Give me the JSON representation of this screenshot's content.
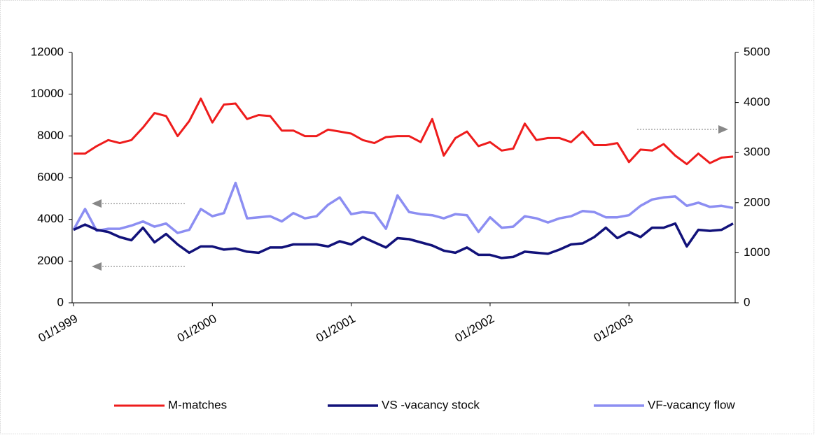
{
  "chart_data": {
    "type": "line",
    "categories": [
      "01/1999",
      null,
      null,
      null,
      null,
      null,
      null,
      null,
      null,
      null,
      null,
      null,
      "01/2000",
      null,
      null,
      null,
      null,
      null,
      null,
      null,
      null,
      null,
      null,
      null,
      "01/2001",
      null,
      null,
      null,
      null,
      null,
      null,
      null,
      null,
      null,
      null,
      null,
      "01/2002",
      null,
      null,
      null,
      null,
      null,
      null,
      null,
      null,
      null,
      null,
      null,
      "01/2003",
      null,
      null,
      null,
      null,
      null,
      null,
      null,
      null,
      null
    ],
    "series": [
      {
        "name": "M-matches",
        "color": "#ee1c1c",
        "axis": "y2",
        "values": [
          2980,
          2980,
          3130,
          3250,
          3190,
          3250,
          3500,
          3790,
          3730,
          3330,
          3630,
          4080,
          3600,
          3960,
          3980,
          3670,
          3750,
          3730,
          3440,
          3440,
          3330,
          3330,
          3460,
          3420,
          3380,
          3250,
          3190,
          3310,
          3330,
          3330,
          3210,
          3670,
          2940,
          3290,
          3420,
          3130,
          3210,
          3040,
          3080,
          3580,
          3250,
          3290,
          3290,
          3210,
          3420,
          3150,
          3150,
          3190,
          2810,
          3060,
          3040,
          3170,
          2940,
          2770,
          2980,
          2790,
          2900,
          2920
        ]
      },
      {
        "name": "VS -vacancy stock",
        "color": "#12127a",
        "values": [
          3500,
          3750,
          3500,
          3400,
          3150,
          3000,
          3600,
          2900,
          3300,
          2800,
          2400,
          2700,
          2700,
          2550,
          2600,
          2450,
          2400,
          2650,
          2650,
          2800,
          2800,
          2800,
          2700,
          2950,
          2800,
          3150,
          2900,
          2650,
          3100,
          3050,
          2900,
          2750,
          2500,
          2400,
          2650,
          2300,
          2300,
          2150,
          2200,
          2450,
          2400,
          2350,
          2550,
          2800,
          2850,
          3150,
          3600,
          3100,
          3400,
          3150,
          3600,
          3600,
          3800,
          2700,
          3500,
          3450,
          3500,
          3800
        ]
      },
      {
        "name": "VF-vacancy flow",
        "color": "#8c8ef2",
        "values": [
          3500,
          4500,
          3450,
          3550,
          3550,
          3700,
          3900,
          3650,
          3800,
          3350,
          3500,
          4500,
          4150,
          4300,
          5750,
          4050,
          4100,
          4150,
          3900,
          4300,
          4050,
          4150,
          4700,
          5050,
          4250,
          4350,
          4300,
          3550,
          5150,
          4350,
          4250,
          4200,
          4050,
          4250,
          4200,
          3400,
          4100,
          3600,
          3650,
          4150,
          4050,
          3850,
          4050,
          4150,
          4400,
          4350,
          4100,
          4100,
          4200,
          4650,
          4950,
          5050,
          5100,
          4650,
          4800,
          4600,
          4650,
          4550
        ]
      }
    ],
    "ylim": [
      0,
      12000
    ],
    "yticks": [
      0,
      2000,
      4000,
      6000,
      8000,
      10000,
      12000
    ],
    "y2lim": [
      0,
      5000
    ],
    "y2ticks": [
      0,
      1000,
      2000,
      3000,
      4000,
      5000
    ],
    "legend": "bottom"
  }
}
